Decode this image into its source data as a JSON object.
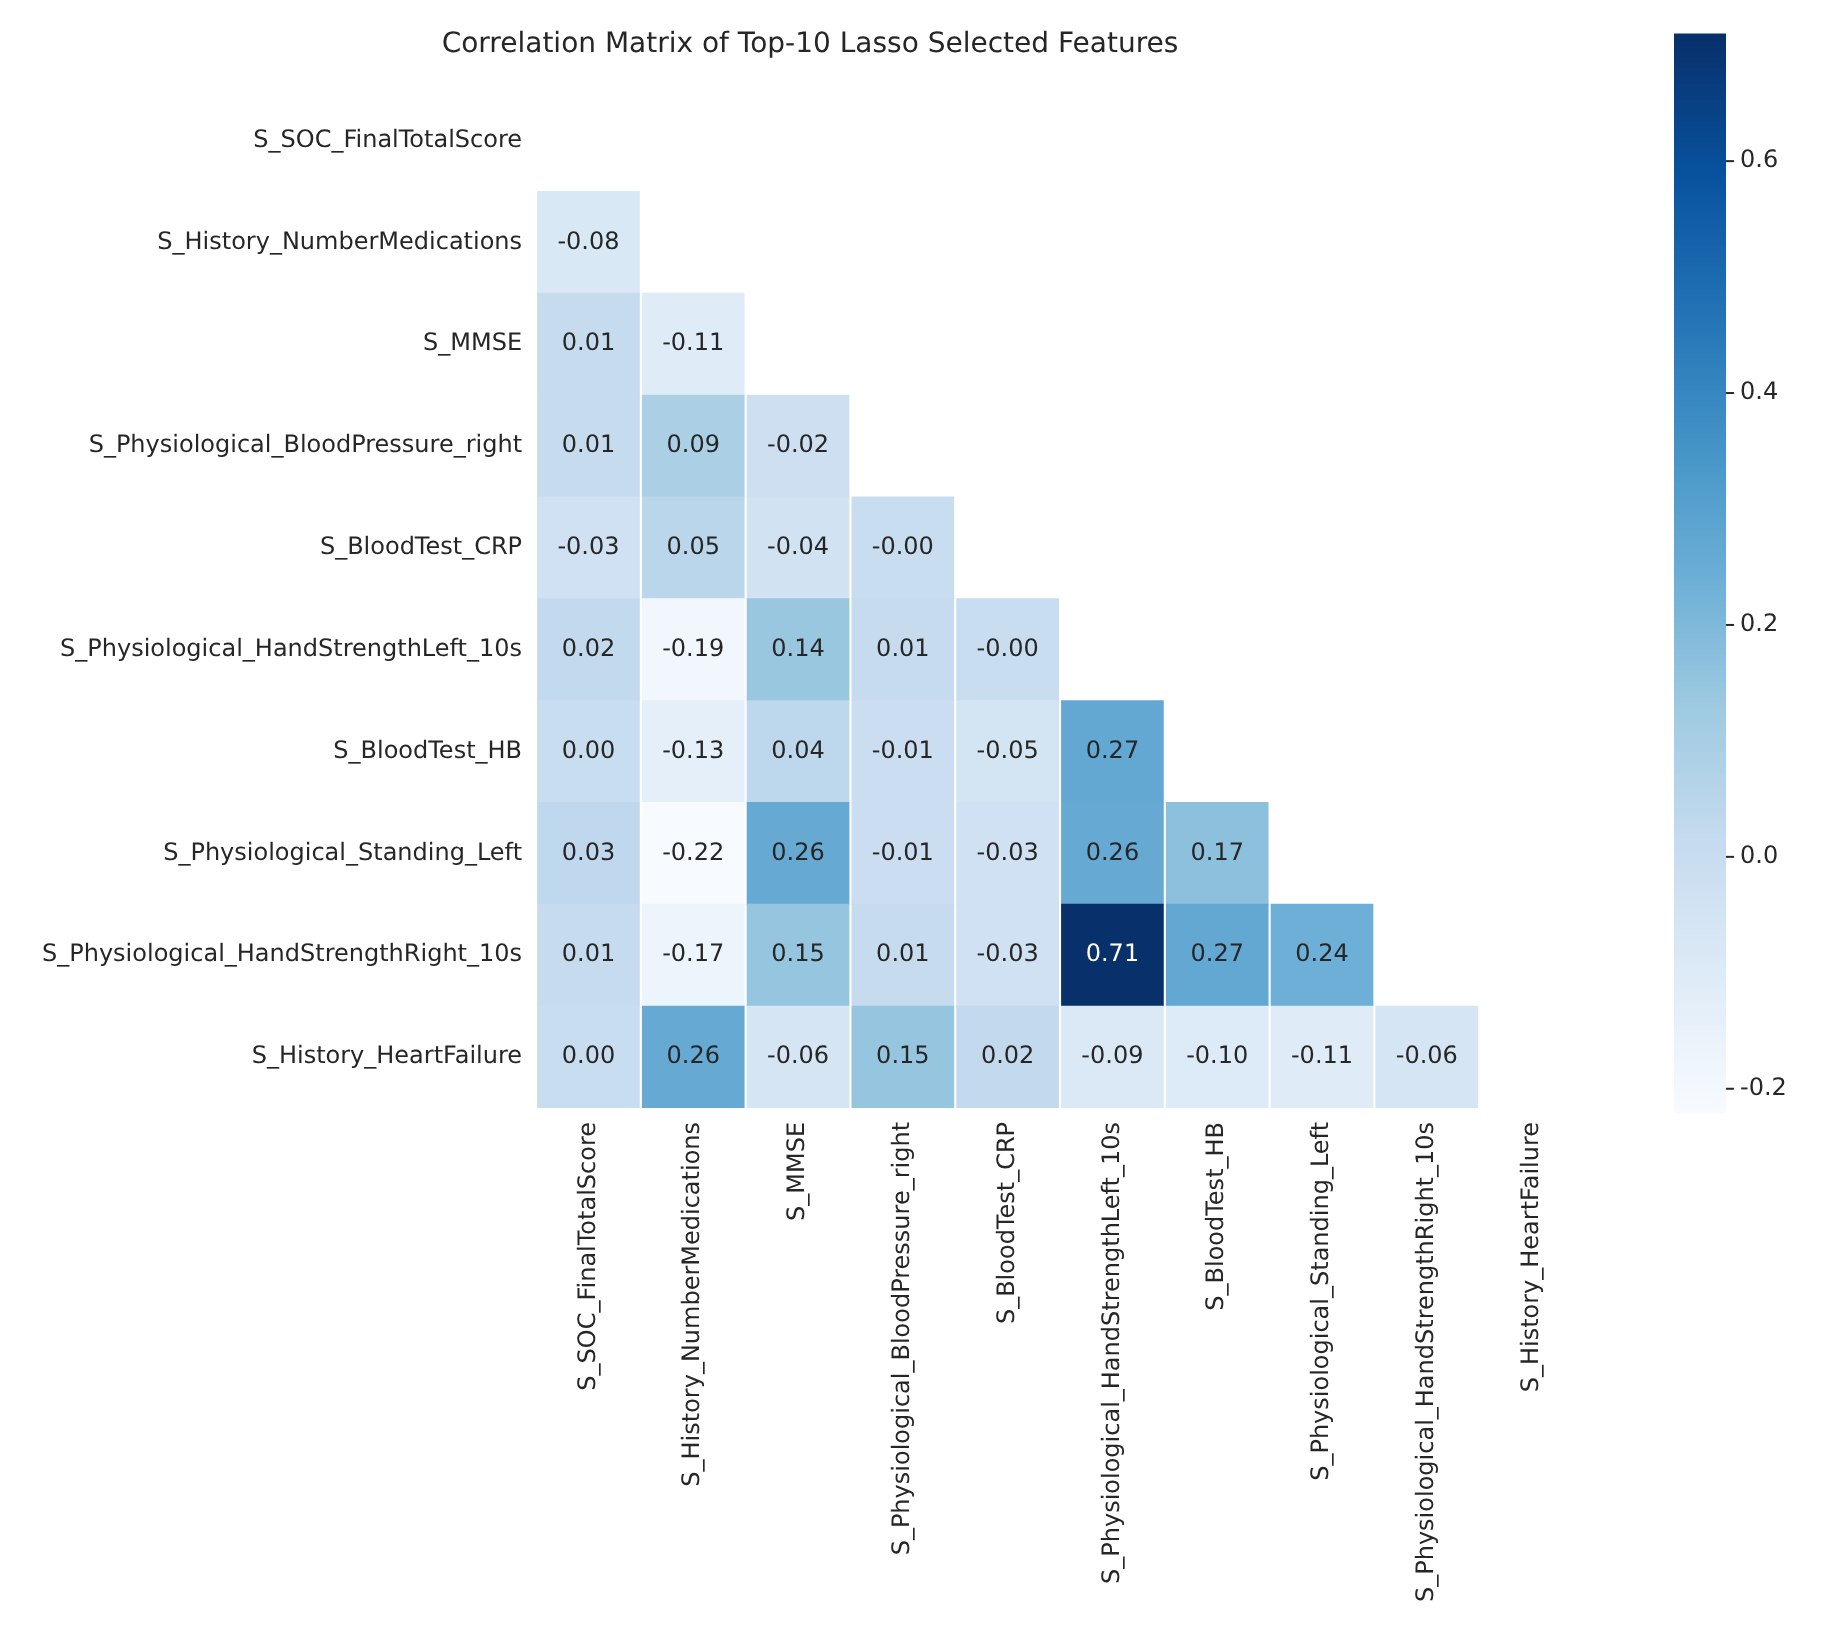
{
  "chart_data": {
    "type": "heatmap",
    "title": "Correlation Matrix of Top-10 Lasso Selected Features",
    "categories": [
      "S_SOC_FinalTotalScore",
      "S_History_NumberMedications",
      "S_MMSE",
      "S_Physiological_BloodPressure_right",
      "S_BloodTest_CRP",
      "S_Physiological_HandStrengthLeft_10s",
      "S_BloodTest_HB",
      "S_Physiological_Standing_Left",
      "S_Physiological_HandStrengthRight_10s",
      "S_History_HeartFailure"
    ],
    "y_categories": [
      "S_SOC_FinalTotalScore",
      "S_History_NumberMedications",
      "S_MMSE",
      "S_Physiological_BloodPressure_right",
      "S_BloodTest_CRP",
      "S_Physiological_HandStrengthLeft_10s",
      "S_BloodTest_HB",
      "S_Physiological_Standing_Left",
      "S_Physiological_HandStrengthRight_10s",
      "S_History_HeartFailure"
    ],
    "cells": [
      [
        null,
        null,
        null,
        null,
        null,
        null,
        null,
        null,
        null,
        null
      ],
      [
        -0.08,
        null,
        null,
        null,
        null,
        null,
        null,
        null,
        null,
        null
      ],
      [
        0.01,
        -0.11,
        null,
        null,
        null,
        null,
        null,
        null,
        null,
        null
      ],
      [
        0.01,
        0.09,
        -0.02,
        null,
        null,
        null,
        null,
        null,
        null,
        null
      ],
      [
        -0.03,
        0.05,
        -0.04,
        0,
        null,
        null,
        null,
        null,
        null,
        null
      ],
      [
        0.02,
        -0.19,
        0.14,
        0.01,
        0,
        null,
        null,
        null,
        null,
        null
      ],
      [
        0.0,
        -0.13,
        0.04,
        -0.01,
        -0.05,
        0.27,
        null,
        null,
        null,
        null
      ],
      [
        0.03,
        -0.22,
        0.26,
        -0.01,
        -0.03,
        0.26,
        0.17,
        null,
        null,
        null
      ],
      [
        0.01,
        -0.17,
        0.15,
        0.01,
        -0.03,
        0.71,
        0.27,
        0.24,
        null,
        null
      ],
      [
        0.0,
        0.26,
        -0.06,
        0.15,
        0.02,
        -0.09,
        -0.1,
        -0.11,
        -0.06,
        null
      ]
    ],
    "cell_labels": [
      [
        null,
        null,
        null,
        null,
        null,
        null,
        null,
        null,
        null,
        null
      ],
      [
        "-0.08",
        null,
        null,
        null,
        null,
        null,
        null,
        null,
        null,
        null
      ],
      [
        "0.01",
        "-0.11",
        null,
        null,
        null,
        null,
        null,
        null,
        null,
        null
      ],
      [
        "0.01",
        "0.09",
        "-0.02",
        null,
        null,
        null,
        null,
        null,
        null,
        null
      ],
      [
        "-0.03",
        "0.05",
        "-0.04",
        "-0.00",
        null,
        null,
        null,
        null,
        null,
        null
      ],
      [
        "0.02",
        "-0.19",
        "0.14",
        "0.01",
        "-0.00",
        null,
        null,
        null,
        null,
        null
      ],
      [
        "0.00",
        "-0.13",
        "0.04",
        "-0.01",
        "-0.05",
        "0.27",
        null,
        null,
        null,
        null
      ],
      [
        "0.03",
        "-0.22",
        "0.26",
        "-0.01",
        "-0.03",
        "0.26",
        "0.17",
        null,
        null,
        null
      ],
      [
        "0.01",
        "-0.17",
        "0.15",
        "0.01",
        "-0.03",
        "0.71",
        "0.27",
        "0.24",
        null,
        null
      ],
      [
        "0.00",
        "0.26",
        "-0.06",
        "0.15",
        "0.02",
        "-0.09",
        "-0.10",
        "-0.11",
        "-0.06",
        null
      ]
    ],
    "data_labels": true,
    "clim": [
      -0.22,
      0.71
    ],
    "cticks": [
      -0.2,
      {
        "value": 0,
        "label": "0.0"
      },
      0.2,
      0.4,
      0.6
    ],
    "grid": false,
    "legend": false
  }
}
